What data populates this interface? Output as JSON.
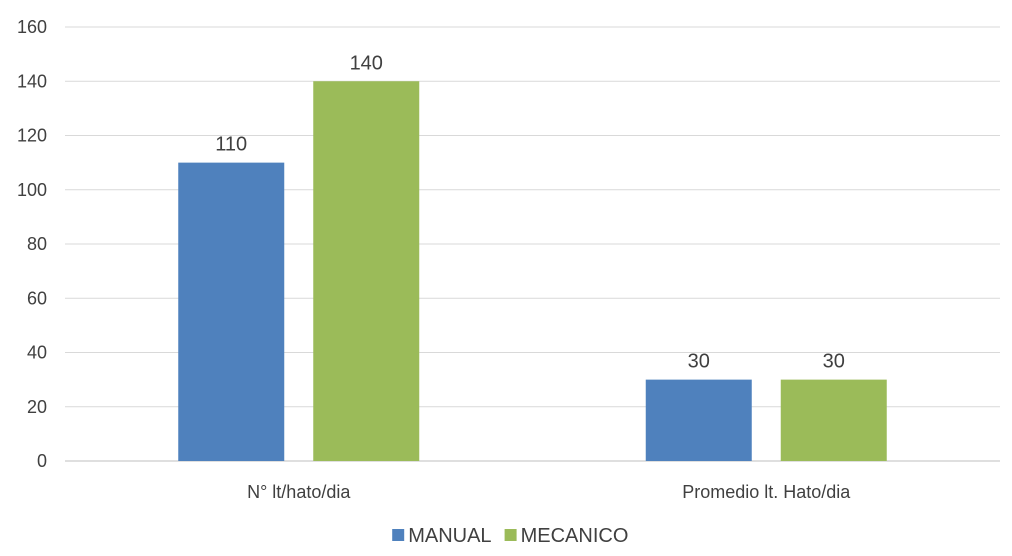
{
  "chart_data": {
    "type": "bar",
    "title": "",
    "xlabel": "",
    "ylabel": "",
    "categories": [
      "N° lt/hato/dia",
      "Promedio lt. Hato/dia"
    ],
    "series": [
      {
        "name": "MANUAL",
        "values": [
          110,
          30
        ],
        "color": "#4f81bd"
      },
      {
        "name": "MECANICO",
        "values": [
          140,
          30
        ],
        "color": "#9bbb59"
      }
    ],
    "ylim": [
      0,
      160
    ],
    "yticks": [
      0,
      20,
      40,
      60,
      80,
      100,
      120,
      140,
      160
    ],
    "grid": true,
    "data_labels": true,
    "legend_position": "bottom-center",
    "colors": {
      "grid": "#d9d9d9",
      "axis": "#bfbfbf",
      "text": "#404040"
    }
  }
}
